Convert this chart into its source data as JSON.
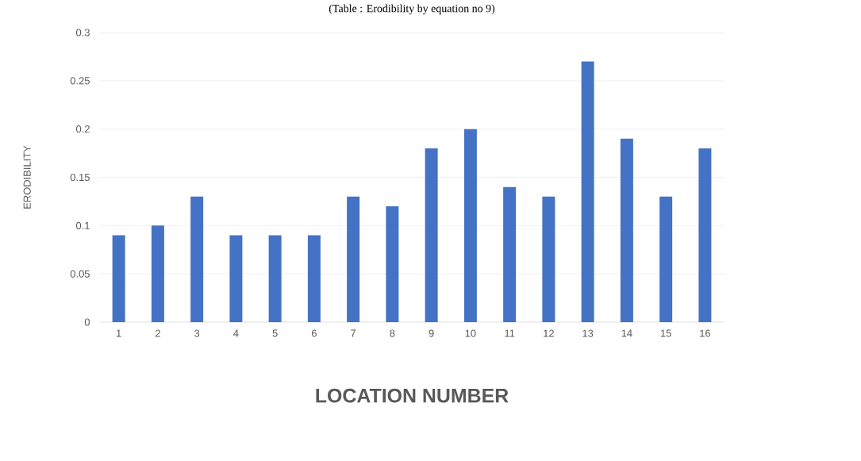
{
  "chart_data": {
    "type": "bar",
    "title": "(Table : Erodibility by equation no 9)",
    "xlabel": "LOCATION NUMBER",
    "ylabel": "ERODIBILITY",
    "categories": [
      "1",
      "2",
      "3",
      "4",
      "5",
      "6",
      "7",
      "8",
      "9",
      "10",
      "11",
      "12",
      "13",
      "14",
      "15",
      "16"
    ],
    "values": [
      0.09,
      0.1,
      0.13,
      0.09,
      0.09,
      0.09,
      0.13,
      0.12,
      0.18,
      0.2,
      0.14,
      0.13,
      0.27,
      0.19,
      0.13,
      0.18
    ],
    "color": "#4472c4",
    "ylim": [
      0,
      0.3
    ],
    "yticks": [
      0,
      0.05,
      0.1,
      0.15,
      0.2,
      0.25,
      0.3
    ],
    "grid": "y"
  }
}
